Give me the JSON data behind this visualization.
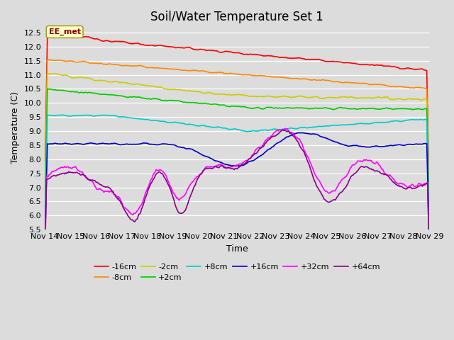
{
  "title": "Soil/Water Temperature Set 1",
  "xlabel": "Time",
  "ylabel": "Temperature (C)",
  "ylim": [
    5.5,
    12.75
  ],
  "xlim": [
    0,
    15
  ],
  "x_tick_labels": [
    "Nov 14",
    "Nov 15",
    "Nov 16",
    "Nov 17",
    "Nov 18",
    "Nov 19",
    "Nov 20",
    "Nov 21",
    "Nov 22",
    "Nov 23",
    "Nov 24",
    "Nov 25",
    "Nov 26",
    "Nov 27",
    "Nov 28",
    "Nov 29"
  ],
  "annotation_text": "EE_met",
  "background_color": "#dcdcdc",
  "series_colors": [
    "#ff0000",
    "#ff8800",
    "#cccc00",
    "#00cc00",
    "#00cccc",
    "#0000cc",
    "#ff00ff",
    "#880088"
  ],
  "series_labels": [
    "-16cm",
    "-8cm",
    "-2cm",
    "+2cm",
    "+8cm",
    "+16cm",
    "+32cm",
    "+64cm"
  ],
  "grid_color": "#ffffff",
  "title_fontsize": 12,
  "axis_fontsize": 9,
  "tick_fontsize": 8,
  "linewidth": 1.2
}
